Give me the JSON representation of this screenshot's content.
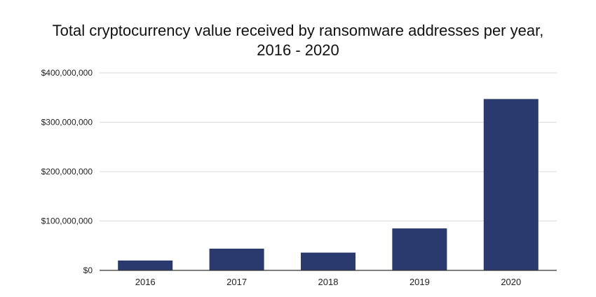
{
  "chart_data": {
    "type": "bar",
    "title_lines": [
      "Total cryptocurrency value received by ransomware addresses per year,",
      "2016 - 2020"
    ],
    "categories": [
      "2016",
      "2017",
      "2018",
      "2019",
      "2020"
    ],
    "values": [
      20000000,
      44000000,
      36000000,
      85000000,
      347000000
    ],
    "ylim": [
      0,
      400000000
    ],
    "yticks": [
      {
        "value": 0,
        "label": "$0"
      },
      {
        "value": 100000000,
        "label": "$100,000,000"
      },
      {
        "value": 200000000,
        "label": "$200,000,000"
      },
      {
        "value": 300000000,
        "label": "$300,000,000"
      },
      {
        "value": 400000000,
        "label": "$400,000,000"
      }
    ],
    "xlabel": "",
    "ylabel": "",
    "grid": true,
    "legend": "none",
    "colors": {
      "bar": "#2b3a6e",
      "grid": "#d9d9d9",
      "axis": "#333333"
    }
  }
}
